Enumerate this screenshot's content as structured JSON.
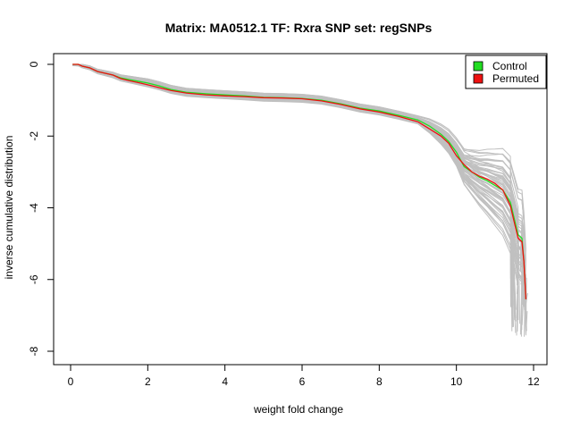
{
  "chart_data": {
    "type": "line",
    "title": "Matrix: MA0512.1 TF: Rxra SNP set: regSNPs",
    "xlabel": "weight fold change",
    "ylabel": "inverse cumulative distribution",
    "xlim": [
      0,
      12
    ],
    "ylim": [
      -8,
      0
    ],
    "x_ticks": [
      0,
      2,
      4,
      6,
      8,
      10,
      12
    ],
    "y_ticks": [
      0,
      -2,
      -4,
      -6,
      -8
    ],
    "grid": false,
    "legend": {
      "placement": "top-right",
      "entries": [
        {
          "name": "Control",
          "color": "#22dd22"
        },
        {
          "name": "Permuted",
          "color": "#ee1111"
        }
      ]
    },
    "background_series": {
      "description_count": 60,
      "color": "#c0c0c0"
    },
    "series": [
      {
        "name": "Control",
        "color": "#22dd22",
        "x": [
          0.05,
          0.2,
          0.3,
          0.5,
          0.7,
          0.9,
          1.1,
          1.3,
          1.5,
          1.8,
          2.0,
          2.3,
          2.6,
          3.0,
          3.5,
          4.0,
          4.5,
          5.0,
          5.5,
          6.0,
          6.5,
          7.0,
          7.5,
          8.0,
          8.5,
          9.0,
          9.3,
          9.6,
          9.8,
          10.0,
          10.2,
          10.4,
          10.6,
          10.8,
          11.0,
          11.2,
          11.4,
          11.6,
          11.7,
          11.75,
          11.8
        ],
        "y": [
          0.0,
          0.0,
          -0.05,
          -0.1,
          -0.2,
          -0.25,
          -0.3,
          -0.38,
          -0.42,
          -0.48,
          -0.52,
          -0.6,
          -0.7,
          -0.78,
          -0.82,
          -0.85,
          -0.88,
          -0.92,
          -0.93,
          -0.95,
          -1.0,
          -1.1,
          -1.22,
          -1.3,
          -1.42,
          -1.55,
          -1.72,
          -1.95,
          -2.15,
          -2.45,
          -2.85,
          -3.0,
          -3.15,
          -3.25,
          -3.38,
          -3.5,
          -3.85,
          -4.75,
          -4.85,
          -5.5,
          -6.55
        ]
      },
      {
        "name": "Permuted",
        "color": "#ee1111",
        "x": [
          0.05,
          0.2,
          0.3,
          0.5,
          0.7,
          0.9,
          1.1,
          1.3,
          1.5,
          1.8,
          2.0,
          2.3,
          2.6,
          3.0,
          3.5,
          4.0,
          4.5,
          5.0,
          5.5,
          6.0,
          6.5,
          7.0,
          7.5,
          8.0,
          8.5,
          9.0,
          9.3,
          9.6,
          9.8,
          10.0,
          10.2,
          10.4,
          10.6,
          10.8,
          11.0,
          11.2,
          11.4,
          11.6,
          11.7,
          11.75,
          11.8
        ],
        "y": [
          0.0,
          0.0,
          -0.05,
          -0.1,
          -0.2,
          -0.25,
          -0.3,
          -0.4,
          -0.45,
          -0.52,
          -0.57,
          -0.65,
          -0.73,
          -0.8,
          -0.85,
          -0.88,
          -0.9,
          -0.93,
          -0.94,
          -0.96,
          -1.02,
          -1.12,
          -1.24,
          -1.33,
          -1.45,
          -1.6,
          -1.8,
          -2.0,
          -2.2,
          -2.55,
          -2.8,
          -3.0,
          -3.12,
          -3.2,
          -3.32,
          -3.5,
          -3.95,
          -4.85,
          -4.95,
          -5.5,
          -6.55
        ]
      }
    ]
  }
}
